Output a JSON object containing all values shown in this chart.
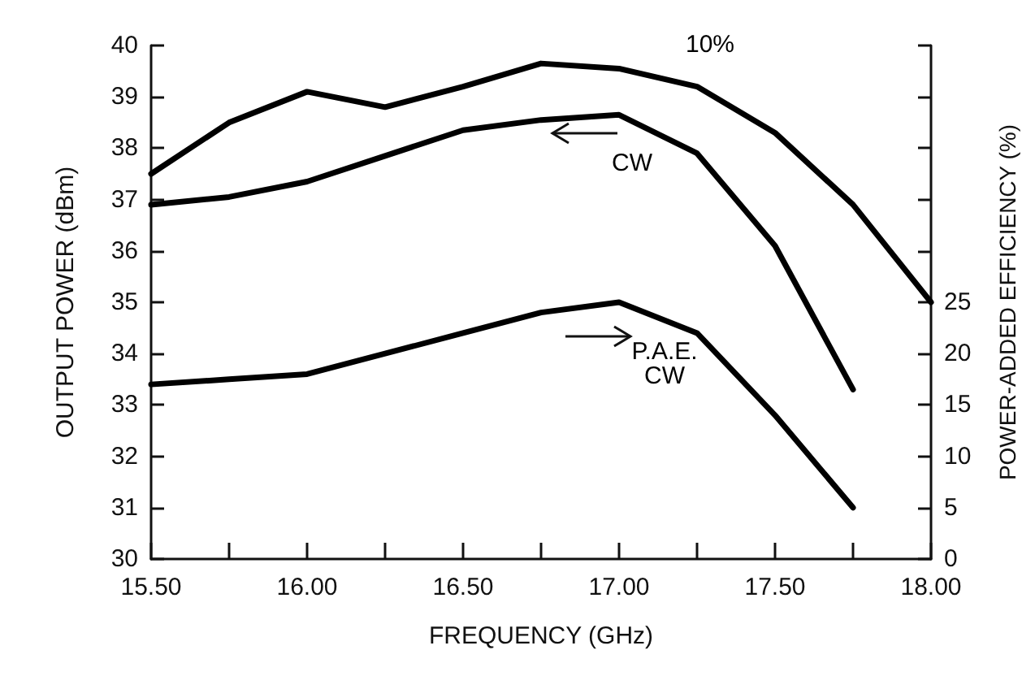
{
  "chart_data": {
    "type": "line",
    "xlabel": "FREQUENCY (GHz)",
    "ylabel": "OUTPUT POWER (dBm)",
    "y2label": "POWER-ADDED EFFICIENCY (%)",
    "x": [
      15.5,
      15.75,
      16.0,
      16.25,
      16.5,
      16.75,
      17.0,
      17.25,
      17.5,
      17.75,
      18.0
    ],
    "series": [
      {
        "name": "10%",
        "color": "#000000",
        "values": [
          37.5,
          38.5,
          39.1,
          38.8,
          39.2,
          39.65,
          39.55,
          39.2,
          38.3,
          36.9,
          35.0
        ]
      },
      {
        "name": "CW",
        "color": "#000000",
        "values": [
          36.9,
          37.05,
          37.35,
          37.85,
          38.35,
          38.55,
          38.65,
          37.9,
          36.1,
          33.3,
          null
        ]
      },
      {
        "name": "P.A.E.\nCW",
        "color": "#000000",
        "axis": "y2",
        "values": [
          17,
          17.5,
          18,
          20,
          22,
          24,
          25,
          22,
          14,
          5,
          null
        ]
      }
    ],
    "xlim": [
      15.5,
      18.0
    ],
    "xticks": [
      {
        "value": 15.5,
        "label": "15.50"
      },
      {
        "value": 15.75,
        "label": null
      },
      {
        "value": 16.0,
        "label": "16.00"
      },
      {
        "value": 16.25,
        "label": null
      },
      {
        "value": 16.5,
        "label": "16.50"
      },
      {
        "value": 16.75,
        "label": null
      },
      {
        "value": 17.0,
        "label": "17.00"
      },
      {
        "value": 17.25,
        "label": null
      },
      {
        "value": 17.5,
        "label": "17.50"
      },
      {
        "value": 17.75,
        "label": null
      },
      {
        "value": 18.0,
        "label": "18.00"
      }
    ],
    "ylim": [
      30,
      40
    ],
    "yticks": [
      30,
      31,
      32,
      33,
      34,
      35,
      36,
      37,
      38,
      39,
      40
    ],
    "y2lim": [
      0,
      50
    ],
    "y2ticks": [
      0,
      5,
      10,
      15,
      20,
      25,
      {
        "value": 30,
        "label": null
      },
      {
        "value": 35,
        "label": null
      },
      {
        "value": 40,
        "label": null
      },
      {
        "value": 45,
        "label": null
      },
      {
        "value": 50,
        "label": null
      }
    ],
    "grid": false,
    "legend": false,
    "marker": "none",
    "line_style": "solid"
  }
}
